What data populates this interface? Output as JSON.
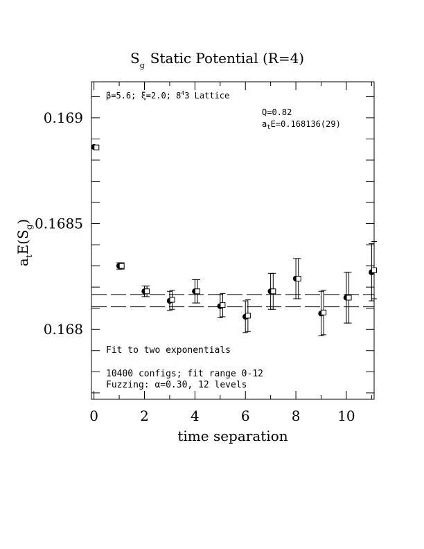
{
  "chart_data": {
    "type": "scatter",
    "title_main": "S",
    "title_sub": "g",
    "title_rest": "Static Potential (R=4)",
    "xlabel": "time separation",
    "ylabel": "a",
    "ylabel_sub": "t",
    "ylabel_rest": "E(S",
    "ylabel_rest_sub": "g",
    "ylabel_close": ")",
    "xlim": [
      -0.1,
      11.1
    ],
    "ylim": [
      0.16767,
      0.16917
    ],
    "x_ticks": [
      {
        "value": 0,
        "label": "0"
      },
      {
        "value": 2,
        "label": "2"
      },
      {
        "value": 4,
        "label": "4"
      },
      {
        "value": 6,
        "label": "6"
      },
      {
        "value": 8,
        "label": "8"
      },
      {
        "value": 10,
        "label": "10"
      }
    ],
    "y_ticks": [
      {
        "value": 0.168,
        "label": "0.168"
      },
      {
        "value": 0.1685,
        "label": "0.1685"
      },
      {
        "value": 0.169,
        "label": "0.169"
      }
    ],
    "header_annotation": "β=5.6; ξ=2.0; 8",
    "header_annotation_sup": "4",
    "header_annotation_rest": "3 Lattice",
    "fit_quality": "Q=0.82",
    "fit_energy_a": "a",
    "fit_energy_sub": "t",
    "fit_energy_rest": "E=0.168136(29)",
    "notes": [
      "Fit to two exponentials",
      "10400 configs; fit range 0-12",
      "Fuzzing: α=0.30, 12 levels"
    ],
    "fit": {
      "value": 0.168136,
      "error": 2.9e-05
    },
    "series": [
      {
        "marker": "filled-circle",
        "x": [
          0,
          1,
          2,
          3,
          4,
          5,
          6,
          7,
          8,
          9,
          10,
          11
        ],
        "y": [
          0.168862,
          0.1683,
          0.16818,
          0.168135,
          0.16818,
          0.16811,
          0.16806,
          0.16818,
          0.16824,
          0.168075,
          0.16815,
          0.16827
        ],
        "err": [
          5e-06,
          1.5e-05,
          2.5e-05,
          4.5e-05,
          5.5e-05,
          5.5e-05,
          7.5e-05,
          8.5e-05,
          9.5e-05,
          0.000105,
          0.00012,
          0.000135
        ]
      },
      {
        "marker": "open-square",
        "x": [
          0.1,
          1.1,
          2.1,
          3.1,
          4.1,
          5.1,
          6.1,
          7.1,
          8.1,
          9.1,
          10.1,
          11.1
        ],
        "y": [
          0.16886,
          0.1683,
          0.16818,
          0.16814,
          0.16818,
          0.168115,
          0.168065,
          0.16818,
          0.16824,
          0.16808,
          0.16815,
          0.16828
        ],
        "err": [
          5e-06,
          1.5e-05,
          2.5e-05,
          4.5e-05,
          5.5e-05,
          5.5e-05,
          7.5e-05,
          8.5e-05,
          9.5e-05,
          0.000105,
          0.00012,
          0.000135
        ]
      }
    ],
    "grid": false,
    "legend": "none"
  }
}
